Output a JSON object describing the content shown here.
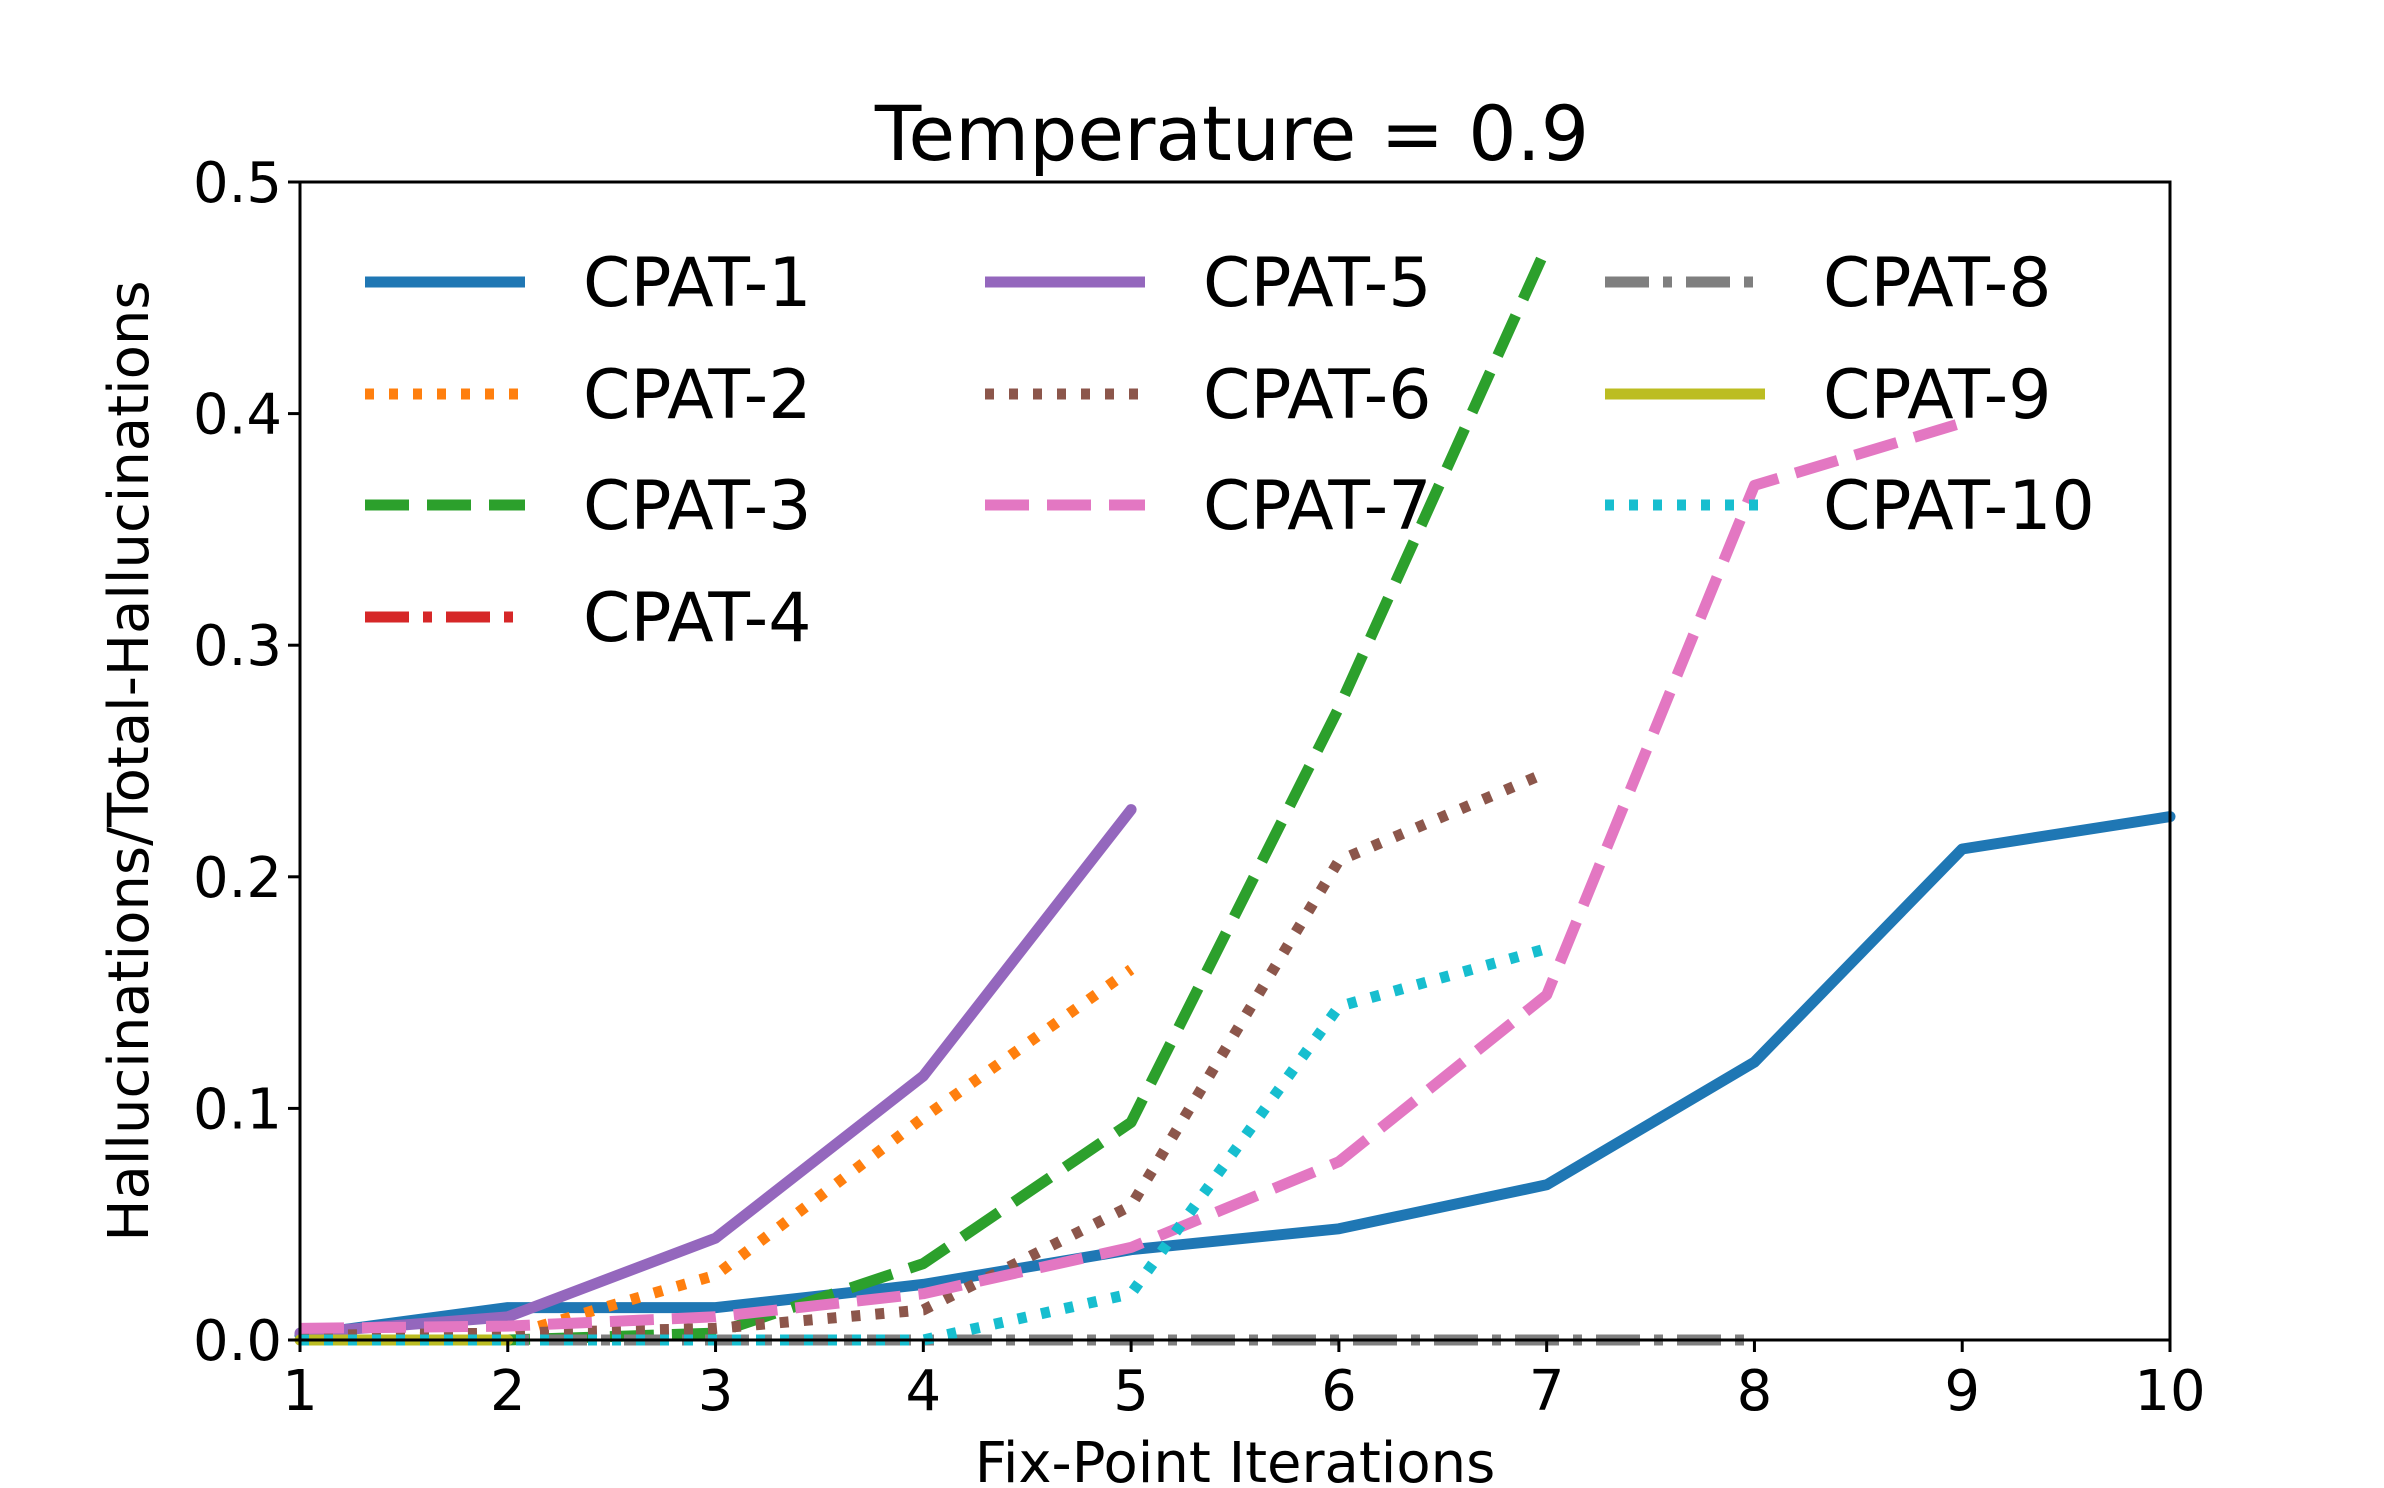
{
  "chart_data": {
    "type": "line",
    "title": "Temperature = 0.9",
    "xlabel": "Fix-Point Iterations",
    "ylabel": "Hallucinations/Total-Hallucinations",
    "xlim": [
      1,
      10
    ],
    "ylim": [
      0,
      0.5
    ],
    "xticks": [
      "1",
      "2",
      "3",
      "4",
      "5",
      "6",
      "7",
      "8",
      "9",
      "10"
    ],
    "yticks": [
      "0.0",
      "0.1",
      "0.2",
      "0.3",
      "0.4",
      "0.5"
    ],
    "grid": false,
    "legend": {
      "placement": "top-left",
      "columns": 3
    },
    "series": [
      {
        "name": "CPAT-1",
        "color": "#1f77b4",
        "style": "solid",
        "x": [
          1,
          2,
          3,
          4,
          5,
          6,
          7,
          8,
          9,
          10
        ],
        "y": [
          0.002,
          0.014,
          0.014,
          0.024,
          0.039,
          0.048,
          0.067,
          0.12,
          0.212,
          0.226
        ]
      },
      {
        "name": "CPAT-2",
        "color": "#ff7f0e",
        "style": "dotted",
        "x": [
          1,
          2,
          3,
          4,
          5
        ],
        "y": [
          0.0,
          0.002,
          0.028,
          0.096,
          0.16
        ]
      },
      {
        "name": "CPAT-3",
        "color": "#2ca02c",
        "style": "dashed",
        "x": [
          1,
          2,
          3,
          4,
          5,
          6,
          7
        ],
        "y": [
          0.0,
          0.0,
          0.003,
          0.033,
          0.094,
          0.273,
          0.472
        ]
      },
      {
        "name": "CPAT-4",
        "color": "#d62728",
        "style": "dashdot",
        "x": [
          1,
          2,
          3
        ],
        "y": [
          0.0,
          0.0,
          0.0
        ]
      },
      {
        "name": "CPAT-5",
        "color": "#9467bd",
        "style": "solid",
        "x": [
          1,
          2,
          3,
          4,
          5
        ],
        "y": [
          0.003,
          0.01,
          0.044,
          0.114,
          0.229
        ]
      },
      {
        "name": "CPAT-6",
        "color": "#8c564b",
        "style": "dotted",
        "x": [
          1,
          2,
          3,
          4,
          5,
          6,
          7
        ],
        "y": [
          0.002,
          0.003,
          0.005,
          0.013,
          0.058,
          0.207,
          0.245
        ]
      },
      {
        "name": "CPAT-7",
        "color": "#e377c2",
        "style": "dashed",
        "x": [
          1,
          2,
          3,
          4,
          5,
          6,
          7,
          8,
          9
        ],
        "y": [
          0.005,
          0.006,
          0.01,
          0.02,
          0.04,
          0.077,
          0.149,
          0.369,
          0.396
        ]
      },
      {
        "name": "CPAT-8",
        "color": "#7f7f7f",
        "style": "dashdot",
        "x": [
          1,
          2,
          3,
          4,
          5,
          6,
          7,
          8
        ],
        "y": [
          0.0,
          0.0,
          0.0,
          0.0,
          0.0,
          0.0,
          0.0,
          0.0
        ]
      },
      {
        "name": "CPAT-9",
        "color": "#bcbd22",
        "style": "solid",
        "x": [
          1,
          2
        ],
        "y": [
          0.0,
          0.0
        ]
      },
      {
        "name": "CPAT-10",
        "color": "#17becf",
        "style": "dotted",
        "x": [
          1,
          2,
          3,
          4,
          5,
          6,
          7
        ],
        "y": [
          0.0,
          0.0,
          0.0,
          0.0,
          0.02,
          0.144,
          0.169
        ]
      }
    ]
  }
}
